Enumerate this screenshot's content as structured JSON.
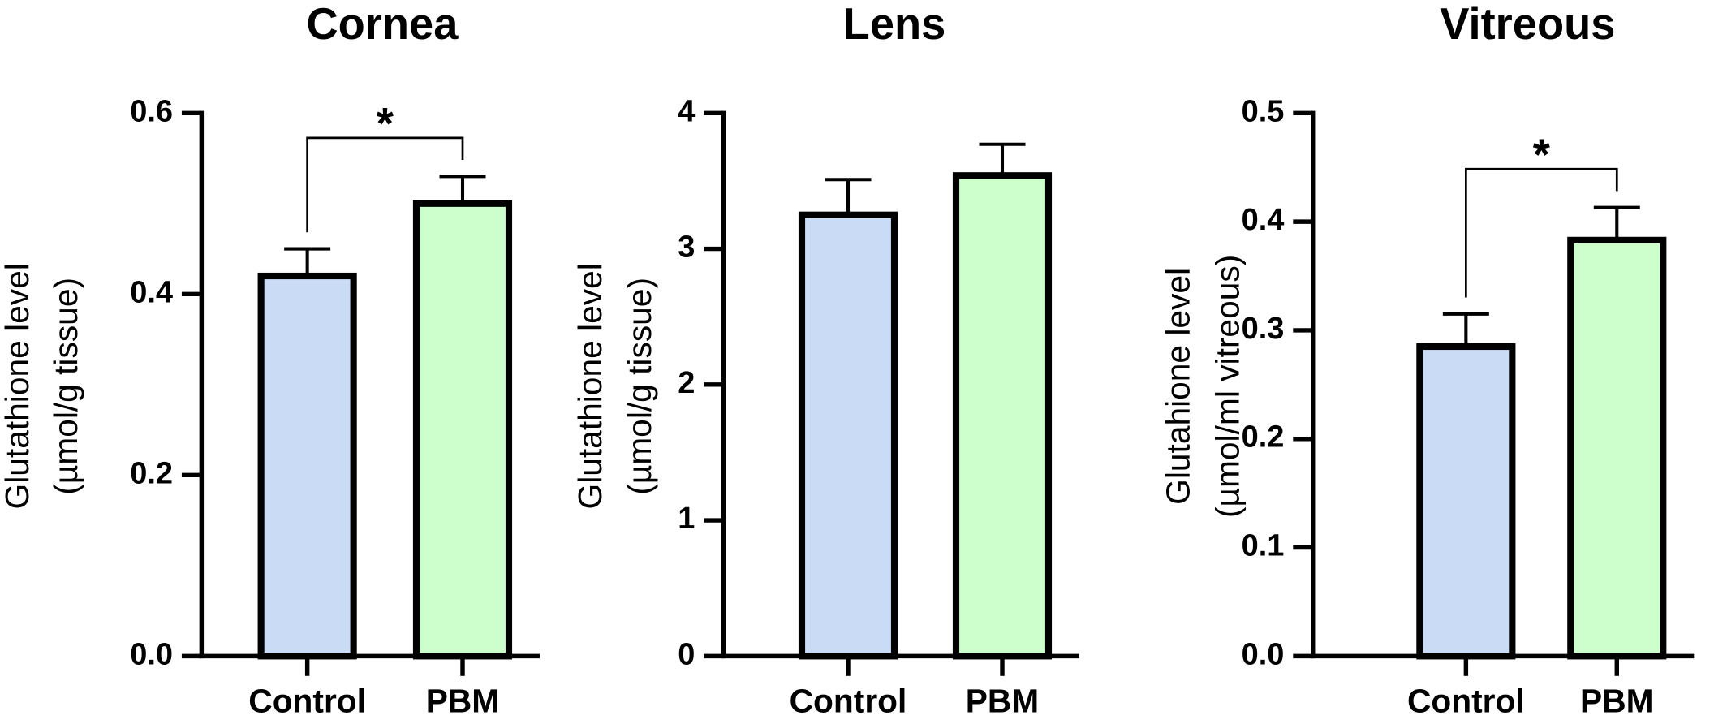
{
  "chart_data": [
    {
      "type": "bar",
      "title": "Cornea",
      "ylabel": [
        "Glutathione level",
        "(µmol/g tissue)"
      ],
      "categories": [
        "Control",
        "PBM"
      ],
      "values": [
        0.42,
        0.5
      ],
      "errors": [
        0.03,
        0.03
      ],
      "colors": [
        "#c9dbf5",
        "#ccffcc"
      ],
      "ylim": [
        0,
        0.6
      ],
      "yticks": [
        {
          "value": 0,
          "label": "0.0"
        },
        0.2,
        0.4,
        0.6
      ],
      "annotations": [
        "*"
      ]
    },
    {
      "type": "bar",
      "title": "Lens",
      "ylabel": [
        "Glutathione level",
        "(µmol/g tissue)"
      ],
      "categories": [
        "Control",
        "PBM"
      ],
      "values": [
        3.25,
        3.54
      ],
      "errors": [
        0.26,
        0.23
      ],
      "colors": [
        "#c9dbf5",
        "#ccffcc"
      ],
      "ylim": [
        0,
        4
      ],
      "yticks": [
        0,
        1,
        2,
        3,
        4
      ]
    },
    {
      "type": "bar",
      "title": "Vitreous",
      "ylabel": [
        "Glutahione level",
        "(µmol/ml vitreous)"
      ],
      "categories": [
        "Control",
        "PBM"
      ],
      "values": [
        0.285,
        0.383
      ],
      "errors": [
        0.03,
        0.03
      ],
      "colors": [
        "#c9dbf5",
        "#ccffcc"
      ],
      "ylim": [
        0,
        0.5
      ],
      "yticks": [
        {
          "value": 0,
          "label": "0.0"
        },
        0.1,
        0.2,
        0.3,
        0.4,
        0.5
      ],
      "annotations": [
        "*"
      ]
    }
  ]
}
